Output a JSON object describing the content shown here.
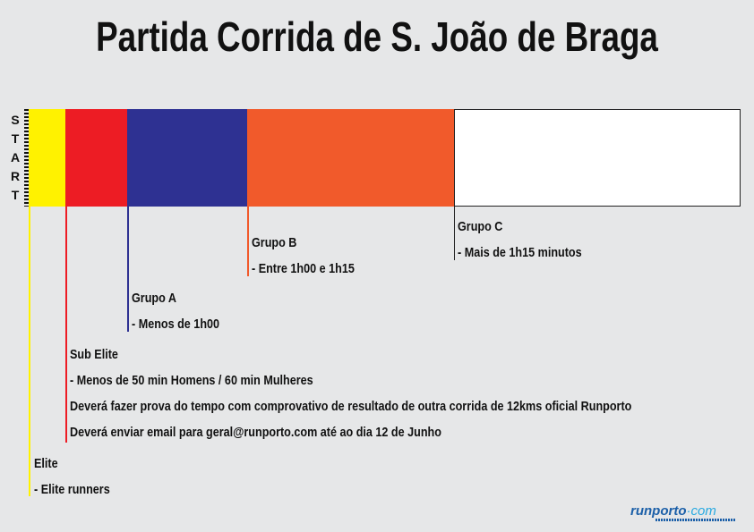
{
  "title": "Partida Corrida de S. João de Braga",
  "start_label": "START",
  "start_letters": [
    "S",
    "T",
    "A",
    "R",
    "T"
  ],
  "colors": {
    "elite": "#fff200",
    "sub_elite": "#ed1c24",
    "grupo_a": "#2e3192",
    "grupo_b": "#f15a2b",
    "grupo_c": "#ffffff"
  },
  "groups": {
    "elite": {
      "name": "Elite",
      "lines": [
        "- Elite runners"
      ]
    },
    "sub_elite": {
      "name": "Sub Elite",
      "lines": [
        "- Menos de 50 min Homens / 60 min Mulheres",
        "Deverá fazer prova do tempo com comprovativo de resultado de outra corrida de 12kms oficial Runporto",
        "Deverá enviar email para geral@runporto.com até ao dia 12 de Junho"
      ]
    },
    "grupo_a": {
      "name": "Grupo A",
      "lines": [
        "- Menos de 1h00"
      ]
    },
    "grupo_b": {
      "name": "Grupo B",
      "lines": [
        "- Entre 1h00 e 1h15"
      ]
    },
    "grupo_c": {
      "name": "Grupo C",
      "lines": [
        "- Mais de 1h15 minutos"
      ]
    }
  },
  "logo": {
    "brand": "runporto",
    "dot": "·",
    "tld": "com"
  }
}
